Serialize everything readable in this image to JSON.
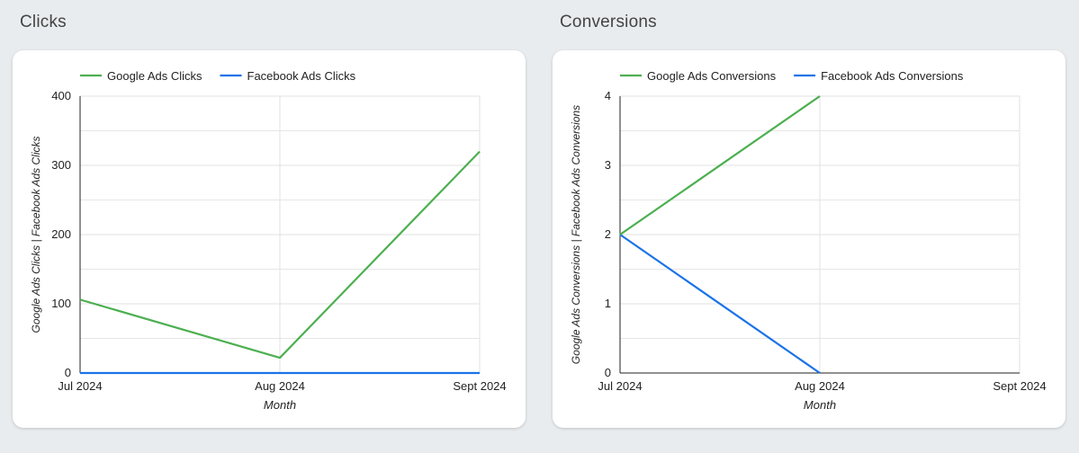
{
  "panels": [
    {
      "heading": "Clicks",
      "colors": {
        "google": "#4caf50",
        "facebook": "#1a73e8"
      },
      "chart_data": {
        "type": "line",
        "categories": [
          "Jul 2024",
          "Aug 2024",
          "Sept 2024"
        ],
        "series": [
          {
            "name": "Google Ads Clicks",
            "values": [
              106,
              22,
              320
            ]
          },
          {
            "name": "Facebook Ads Clicks",
            "values": [
              0,
              0,
              0
            ]
          }
        ],
        "xlabel": "Month",
        "ylabel": "Google Ads Clicks | Facebook Ads Clicks",
        "ylim": [
          0,
          400
        ],
        "yticks": [
          0,
          100,
          200,
          300,
          400
        ],
        "grid": true,
        "legend": "top-left"
      }
    },
    {
      "heading": "Conversions",
      "colors": {
        "google": "#4caf50",
        "facebook": "#1a73e8"
      },
      "chart_data": {
        "type": "line",
        "categories": [
          "Jul 2024",
          "Aug 2024",
          "Sept 2024"
        ],
        "series": [
          {
            "name": "Google Ads Conversions",
            "values": [
              2,
              4,
              null
            ]
          },
          {
            "name": "Facebook Ads Conversions",
            "values": [
              2,
              0,
              null
            ]
          }
        ],
        "xlabel": "Month",
        "ylabel": "Google Ads Conversions | Facebook Ads Conversions",
        "ylim": [
          0,
          4
        ],
        "yticks": [
          0,
          1,
          2,
          3,
          4
        ],
        "grid": true,
        "legend": "top-left"
      }
    }
  ]
}
